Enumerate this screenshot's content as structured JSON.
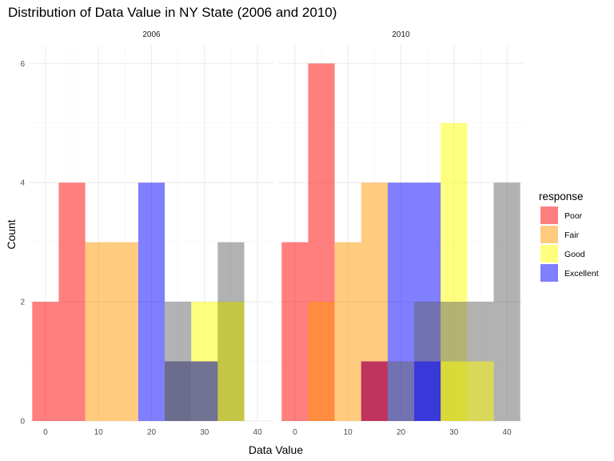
{
  "chart_data": {
    "type": "histogram",
    "title": "Distribution of Data Value in NY State (2006 and 2010)",
    "xlabel": "Data Value",
    "ylabel": "Count",
    "xlim": [
      -3,
      43
    ],
    "ylim": [
      0,
      6.3
    ],
    "x_ticks": [
      0,
      10,
      20,
      30,
      40
    ],
    "y_ticks": [
      0,
      2,
      4,
      6
    ],
    "bin_width": 5,
    "bar_alpha": 0.5,
    "grid": true,
    "legend": {
      "title": "response",
      "position": "right",
      "items": [
        {
          "label": "Poor",
          "color": "#ff0000"
        },
        {
          "label": "Fair",
          "color": "#ff9900"
        },
        {
          "label": "Good",
          "color": "#ffff00"
        },
        {
          "label": "Excellent",
          "color": "#0000ff"
        }
      ]
    },
    "unlabeled_series_color": "#666666",
    "panels": [
      {
        "label": "2006",
        "bars": [
          {
            "series": "Poor",
            "color": "#ff0000",
            "x": 0,
            "count": 2
          },
          {
            "series": "Poor",
            "color": "#ff0000",
            "x": 5,
            "count": 4
          },
          {
            "series": "Fair",
            "color": "#ff9900",
            "x": 10,
            "count": 3
          },
          {
            "series": "Fair",
            "color": "#ff9900",
            "x": 15,
            "count": 3
          },
          {
            "series": "Excellent",
            "color": "#0000ff",
            "x": 20,
            "count": 4
          },
          {
            "series": "Good",
            "color": "#ffff00",
            "x": 30,
            "count": 2
          },
          {
            "series": "Excellent",
            "color": "#0000ff",
            "x": 25,
            "count": 1
          },
          {
            "series": "Excellent",
            "color": "#0000ff",
            "x": 30,
            "count": 1
          },
          {
            "series": "",
            "color": "#666666",
            "x": 25,
            "count": 2
          },
          {
            "series": "",
            "color": "#666666",
            "x": 35,
            "count": 3
          },
          {
            "series": "",
            "color": "#666666",
            "x": 25,
            "count": 1
          },
          {
            "series": "",
            "color": "#666666",
            "x": 30,
            "count": 1
          },
          {
            "series": "",
            "color": "#666666",
            "x": 35,
            "count": 2
          },
          {
            "series": "Good",
            "color": "#ffff00",
            "x": 35,
            "count": 2
          }
        ]
      },
      {
        "label": "2010",
        "bars": [
          {
            "series": "Poor",
            "color": "#ff0000",
            "x": 0,
            "count": 3
          },
          {
            "series": "Poor",
            "color": "#ff0000",
            "x": 5,
            "count": 6
          },
          {
            "series": "Fair",
            "color": "#ff9900",
            "x": 5,
            "count": 2
          },
          {
            "series": "Fair",
            "color": "#ff9900",
            "x": 10,
            "count": 3
          },
          {
            "series": "Fair",
            "color": "#ff9900",
            "x": 15,
            "count": 4
          },
          {
            "series": "Excellent",
            "color": "#0000ff",
            "x": 20,
            "count": 4
          },
          {
            "series": "Excellent",
            "color": "#0000ff",
            "x": 25,
            "count": 4
          },
          {
            "series": "Good",
            "color": "#ffff00",
            "x": 30,
            "count": 5
          },
          {
            "series": "Excellent",
            "color": "#0000ff",
            "x": 15,
            "count": 1
          },
          {
            "series": "Poor",
            "color": "#ff0000",
            "x": 15,
            "count": 1
          },
          {
            "series": "",
            "color": "#666666",
            "x": 20,
            "count": 1
          },
          {
            "series": "",
            "color": "#666666",
            "x": 25,
            "count": 2
          },
          {
            "series": "Excellent",
            "color": "#0000ff",
            "x": 25,
            "count": 1
          },
          {
            "series": "",
            "color": "#666666",
            "x": 30,
            "count": 2
          },
          {
            "series": "",
            "color": "#666666",
            "x": 35,
            "count": 2
          },
          {
            "series": "",
            "color": "#666666",
            "x": 40,
            "count": 4
          },
          {
            "series": "Good",
            "color": "#ffff00",
            "x": 30,
            "count": 1
          },
          {
            "series": "Good",
            "color": "#ffff00",
            "x": 35,
            "count": 1
          }
        ]
      }
    ]
  }
}
